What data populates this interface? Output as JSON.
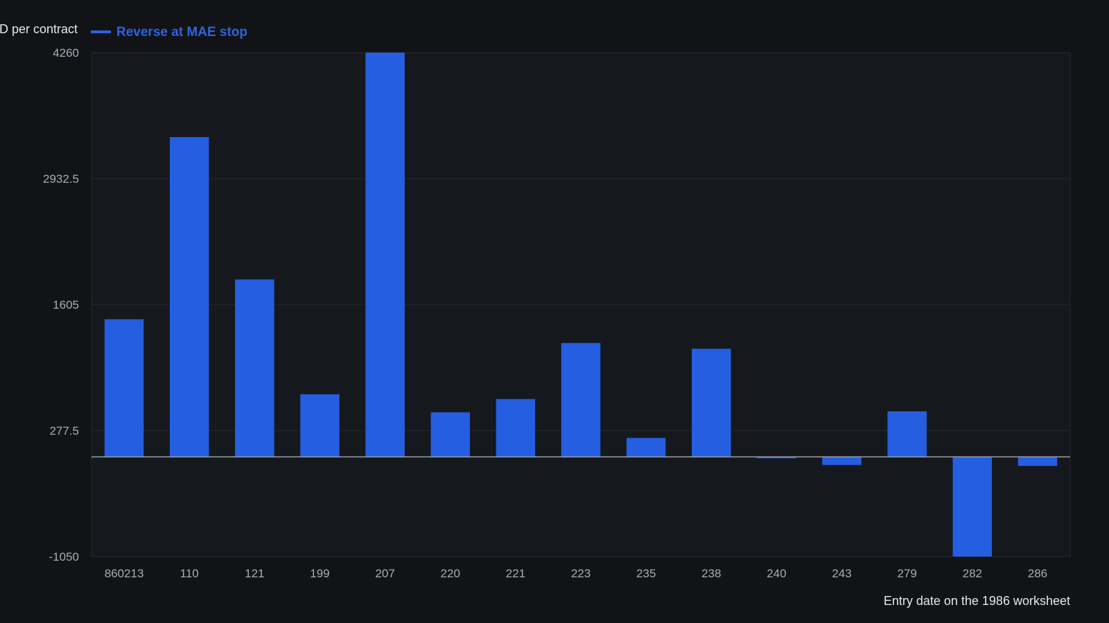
{
  "colors": {
    "background": "#111317",
    "plot_background": "#15181d",
    "bar": "#255ee0",
    "legend": "#2f63e0",
    "gridline": "#262a31",
    "zero_line": "#9aa0a8",
    "tick_text": "#a9adb3",
    "label_text": "#e6e8eb"
  },
  "chart_data": {
    "type": "bar",
    "ylabel": "D per contract",
    "xlabel": "Entry date on the 1986 worksheet",
    "legend": {
      "placement": "top-left",
      "entries": [
        "Reverse at MAE stop"
      ]
    },
    "categories": [
      "860213",
      "110",
      "121",
      "199",
      "207",
      "220",
      "221",
      "223",
      "235",
      "238",
      "240",
      "243",
      "279",
      "282",
      "286"
    ],
    "series": [
      {
        "name": "Reverse at MAE stop",
        "values": [
          1450,
          3370,
          1870,
          660,
          4260,
          470,
          610,
          1200,
          200,
          1140,
          -15,
          -85,
          480,
          -1050,
          -95
        ]
      }
    ],
    "ylim": [
      -1050,
      4260
    ],
    "yticks": [
      "4260",
      "2932.5",
      "1605",
      "277.5",
      "-1050"
    ],
    "grid": true
  }
}
